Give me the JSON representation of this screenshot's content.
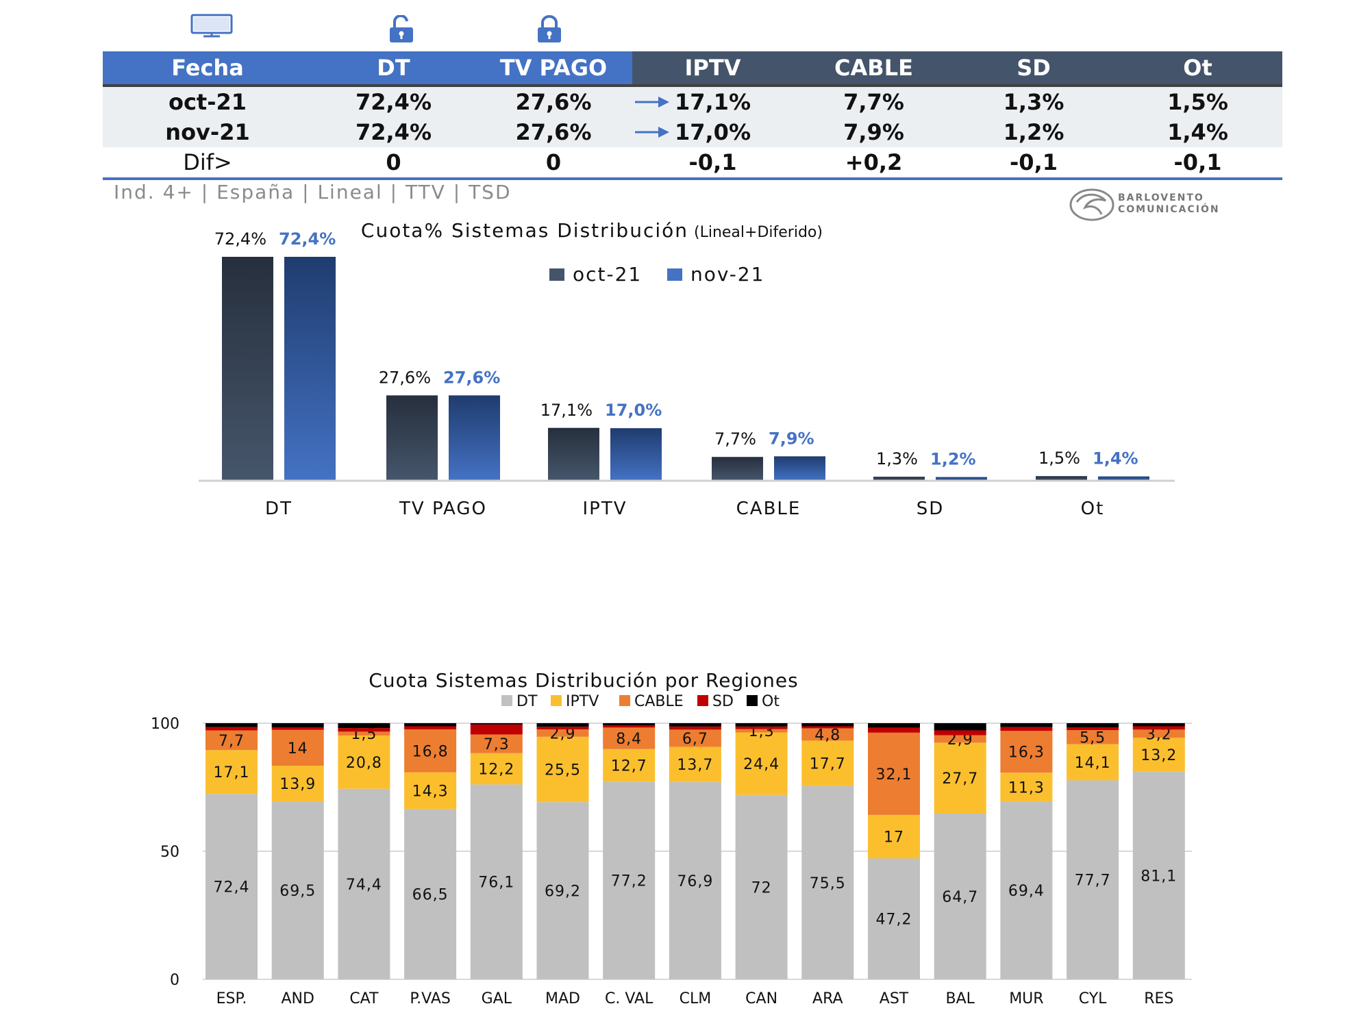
{
  "summary_table": {
    "headers": [
      "Fecha",
      "DT",
      "TV PAGO",
      "IPTV",
      "CABLE",
      "SD",
      "Ot"
    ],
    "rows": [
      {
        "label": "oct-21",
        "values": [
          "72,4%",
          "27,6%",
          "17,1%",
          "7,7%",
          "1,3%",
          "1,5%"
        ]
      },
      {
        "label": "nov-21",
        "values": [
          "72,4%",
          "27,6%",
          "17,0%",
          "7,9%",
          "1,2%",
          "1,4%"
        ]
      }
    ],
    "dif": {
      "label": "Dif>",
      "values": [
        "0",
        "0",
        "-0,1",
        "+0,2",
        "-0,1",
        "-0,1"
      ]
    }
  },
  "subtitle": "Ind. 4+ | España | Lineal | TTV | TSD",
  "logo": {
    "line1": "BARLOVENTO",
    "line2": "COMUNICACIÓN"
  },
  "colors": {
    "dark": "#44546a",
    "blue": "#4472c4",
    "dt": "#c0c0c0",
    "iptv": "#fbbf2e",
    "cable": "#ed7d31",
    "sd": "#c00000",
    "ot": "#000000"
  },
  "chart_data": [
    {
      "type": "bar",
      "title": "Cuota% Sistemas Distribución",
      "title_note": "(Lineal+Diferido)",
      "categories": [
        "DT",
        "TV PAGO",
        "IPTV",
        "CABLE",
        "SD",
        "Ot"
      ],
      "series": [
        {
          "name": "oct-21",
          "values": [
            72.4,
            27.6,
            17.1,
            7.7,
            1.3,
            1.5
          ],
          "labels": [
            "72,4%",
            "27,6%",
            "17,1%",
            "7,7%",
            "1,3%",
            "1,5%"
          ]
        },
        {
          "name": "nov-21",
          "values": [
            72.4,
            27.6,
            17.0,
            7.9,
            1.2,
            1.4
          ],
          "labels": [
            "72,4%",
            "27,6%",
            "17,0%",
            "7,9%",
            "1,2%",
            "1,4%"
          ]
        }
      ],
      "ylim": [
        0,
        72.4
      ],
      "legend": "top-center"
    },
    {
      "type": "bar",
      "stacked": true,
      "title": "Cuota Sistemas Distribución por  Regiones",
      "categories": [
        "ESP.",
        "AND",
        "CAT",
        "P.VAS",
        "GAL",
        "MAD",
        "C. VAL",
        "CLM",
        "CAN",
        "ARA",
        "AST",
        "BAL",
        "MUR",
        "CYL",
        "RES"
      ],
      "series": [
        {
          "name": "DT",
          "values": [
            72.4,
            69.5,
            74.4,
            66.5,
            76.1,
            69.2,
            77.2,
            76.9,
            72,
            75.5,
            47.2,
            64.7,
            69.4,
            77.7,
            81.1
          ],
          "labels": [
            "72,4",
            "69,5",
            "74,4",
            "66,5",
            "76,1",
            "69,2",
            "77,2",
            "76,9",
            "72",
            "75,5",
            "47,2",
            "64,7",
            "69,4",
            "77,7",
            "81,1"
          ]
        },
        {
          "name": "IPTV",
          "values": [
            17.1,
            13.9,
            20.8,
            14.3,
            12.2,
            25.5,
            12.7,
            13.7,
            24.4,
            17.7,
            17,
            27.7,
            11.3,
            14.1,
            13.2
          ],
          "labels": [
            "17,1",
            "13,9",
            "20,8",
            "14,3",
            "12,2",
            "25,5",
            "12,7",
            "13,7",
            "24,4",
            "17,7",
            "17",
            "27,7",
            "11,3",
            "14,1",
            "13,2"
          ]
        },
        {
          "name": "CABLE",
          "values": [
            7.7,
            14,
            1.5,
            16.8,
            7.3,
            2.9,
            8.4,
            6.7,
            1.3,
            4.8,
            32.1,
            2.9,
            16.3,
            5.5,
            3.2
          ],
          "labels": [
            "7,7",
            "14",
            "1,5",
            "16,8",
            "7,3",
            "2,9",
            "8,4",
            "6,7",
            "1,3",
            "4,8",
            "32,1",
            "2,9",
            "16,3",
            "5,5",
            "3,2"
          ]
        },
        {
          "name": "SD",
          "values": [
            1.3,
            1.0,
            1.4,
            1.2,
            3.9,
            1.0,
            0.8,
            1.2,
            1.0,
            0.8,
            1.9,
            1.9,
            1.5,
            1.1,
            1.3
          ]
        },
        {
          "name": "Ot",
          "values": [
            1.5,
            1.6,
            1.9,
            1.2,
            0.5,
            1.4,
            0.9,
            1.3,
            1.3,
            1.2,
            1.8,
            2.8,
            1.5,
            1.6,
            1.2
          ]
        }
      ],
      "yticks": [
        "100",
        "50",
        "0"
      ],
      "ylim": [
        0,
        100
      ],
      "grid": true,
      "legend": "top"
    }
  ]
}
